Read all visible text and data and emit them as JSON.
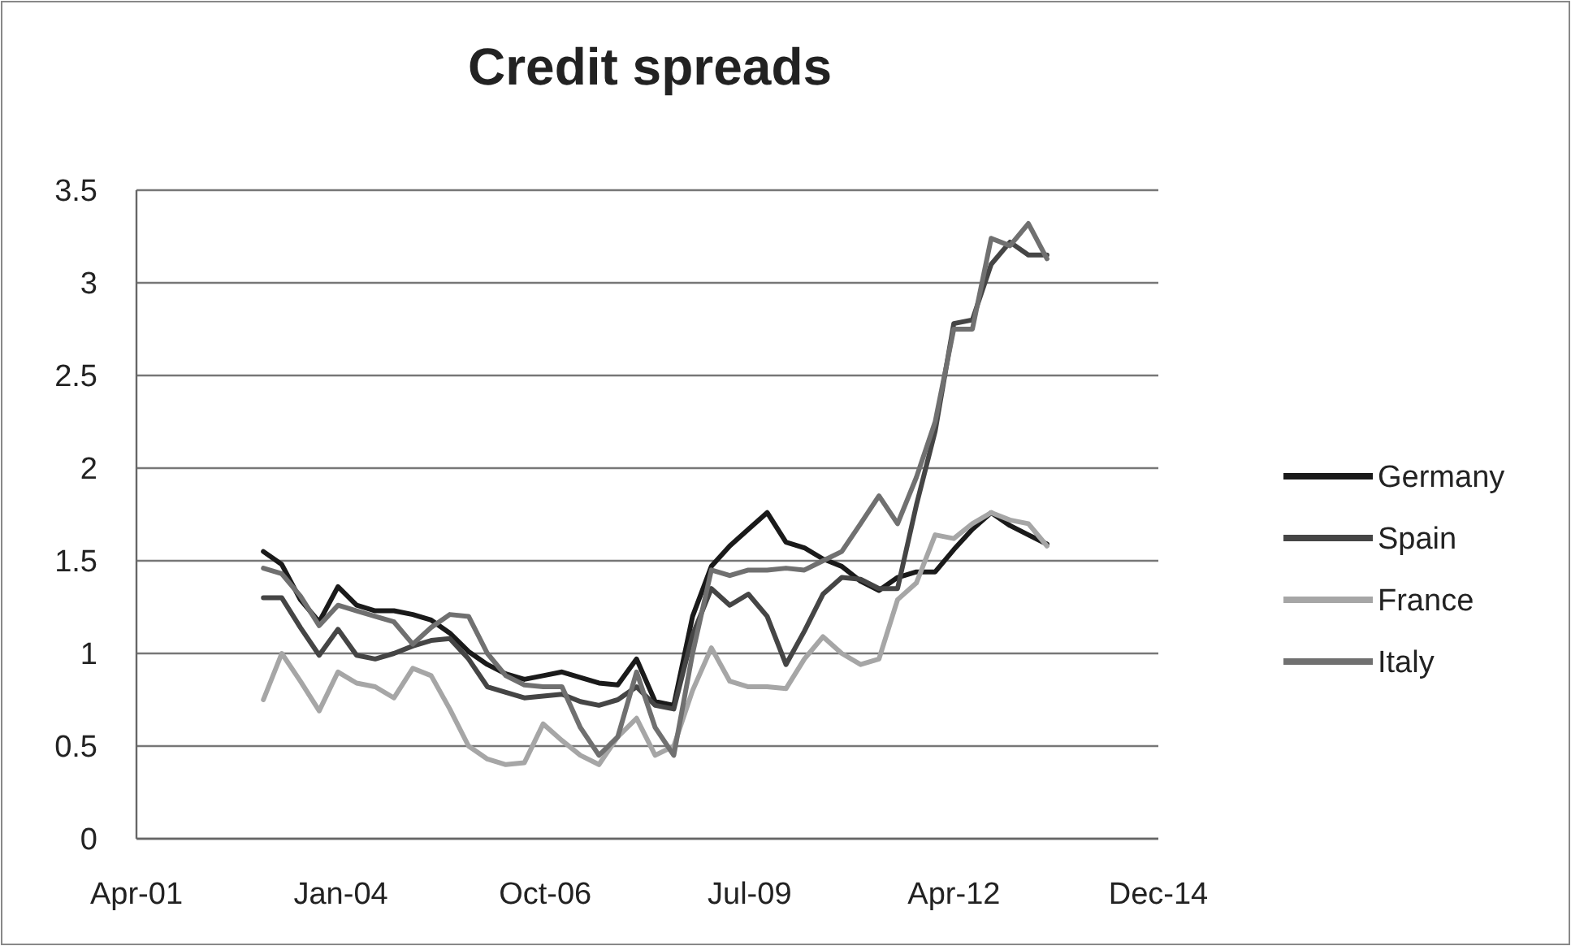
{
  "chart_data": {
    "type": "line",
    "title": "Credit spreads",
    "x": [
      "2003-01",
      "2003-04",
      "2003-07",
      "2003-10",
      "2004-01",
      "2004-04",
      "2004-07",
      "2004-10",
      "2005-01",
      "2005-04",
      "2005-07",
      "2005-10",
      "2006-01",
      "2006-04",
      "2006-07",
      "2006-10",
      "2007-01",
      "2007-04",
      "2007-07",
      "2007-10",
      "2008-01",
      "2008-04",
      "2008-07",
      "2008-10",
      "2009-01",
      "2009-04",
      "2009-07",
      "2009-10",
      "2010-01",
      "2010-04",
      "2010-07",
      "2010-10",
      "2011-01",
      "2011-04",
      "2011-07",
      "2011-10",
      "2012-01",
      "2012-04",
      "2012-07",
      "2012-10",
      "2013-01",
      "2013-04",
      "2013-07"
    ],
    "series": [
      {
        "name": "Germany",
        "color": "#1a1a1a",
        "values": [
          1.55,
          1.48,
          1.29,
          1.17,
          1.36,
          1.26,
          1.23,
          1.23,
          1.21,
          1.18,
          1.11,
          1.01,
          0.94,
          0.89,
          0.86,
          0.88,
          0.9,
          0.87,
          0.84,
          0.83,
          0.97,
          0.74,
          0.72,
          1.2,
          1.47,
          1.58,
          1.67,
          1.76,
          1.6,
          1.57,
          1.51,
          1.47,
          1.39,
          1.34,
          1.41,
          1.44,
          1.44,
          1.56,
          1.67,
          1.76,
          1.69,
          1.64,
          1.59
        ]
      },
      {
        "name": "Spain",
        "color": "#454545",
        "values": [
          1.3,
          1.3,
          1.14,
          0.99,
          1.13,
          0.99,
          0.97,
          1.0,
          1.04,
          1.07,
          1.08,
          0.97,
          0.82,
          0.79,
          0.76,
          0.77,
          0.78,
          0.74,
          0.72,
          0.75,
          0.82,
          0.72,
          0.7,
          1.1,
          1.35,
          1.26,
          1.32,
          1.2,
          0.94,
          1.12,
          1.32,
          1.41,
          1.4,
          1.35,
          1.35,
          1.8,
          2.2,
          2.78,
          2.8,
          3.1,
          3.22,
          3.15,
          3.15
        ]
      },
      {
        "name": "France",
        "color": "#a6a6a6",
        "values": [
          0.75,
          1.0,
          0.85,
          0.69,
          0.9,
          0.84,
          0.82,
          0.76,
          0.92,
          0.88,
          0.7,
          0.5,
          0.43,
          0.4,
          0.41,
          0.62,
          0.53,
          0.45,
          0.4,
          0.55,
          0.65,
          0.45,
          0.5,
          0.8,
          1.03,
          0.85,
          0.82,
          0.82,
          0.81,
          0.97,
          1.09,
          1.0,
          0.94,
          0.97,
          1.29,
          1.38,
          1.64,
          1.62,
          1.7,
          1.76,
          1.72,
          1.7,
          1.58
        ]
      },
      {
        "name": "Italy",
        "color": "#707070",
        "values": [
          1.46,
          1.43,
          1.31,
          1.15,
          1.26,
          1.23,
          1.2,
          1.17,
          1.05,
          1.14,
          1.21,
          1.2,
          1.0,
          0.88,
          0.83,
          0.82,
          0.82,
          0.6,
          0.45,
          0.55,
          0.9,
          0.6,
          0.45,
          1.0,
          1.45,
          1.42,
          1.45,
          1.45,
          1.46,
          1.45,
          1.5,
          1.55,
          1.7,
          1.85,
          1.7,
          1.95,
          2.25,
          2.75,
          2.75,
          3.24,
          3.2,
          3.32,
          3.13
        ]
      }
    ],
    "xlim": [
      "2001-04-20",
      "2014-12-28"
    ],
    "xticks": [
      {
        "value": "2001-04-20",
        "label": "Apr-01"
      },
      {
        "value": "2004-01-15",
        "label": "Jan-04"
      },
      {
        "value": "2006-10-11",
        "label": "Oct-06"
      },
      {
        "value": "2009-07-07",
        "label": "Jul-09"
      },
      {
        "value": "2012-04-02",
        "label": "Apr-12"
      },
      {
        "value": "2014-12-28",
        "label": "Dec-14"
      }
    ],
    "ylim": [
      0,
      3.5
    ],
    "yticks": [
      0,
      0.5,
      1,
      1.5,
      2,
      2.5,
      3,
      3.5
    ],
    "grid": "y",
    "legend": "right",
    "marker": "none",
    "line_style": "solid"
  }
}
